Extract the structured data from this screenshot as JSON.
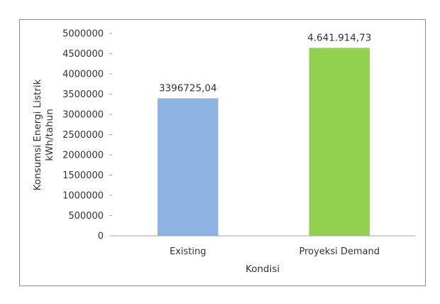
{
  "chart_data": {
    "type": "bar",
    "categories": [
      "Existing",
      "Proyeksi Demand"
    ],
    "values": [
      3396725.04,
      4641914.73
    ],
    "data_labels": [
      "3396725,04",
      "4.641.914,73"
    ],
    "bar_colors": [
      "#8db3e2",
      "#92d050"
    ],
    "title": "",
    "xlabel": "Kondisi",
    "ylabel_lines": [
      "Konsumsi Energi Listrik",
      "kWh/tahun"
    ],
    "ylim": [
      0,
      5000000
    ],
    "y_ticks": [
      "0",
      "500000",
      "1000000",
      "1500000",
      "2000000",
      "2500000",
      "3000000",
      "3500000",
      "4000000",
      "4500000",
      "5000000"
    ],
    "grid": false,
    "legend": "none"
  }
}
